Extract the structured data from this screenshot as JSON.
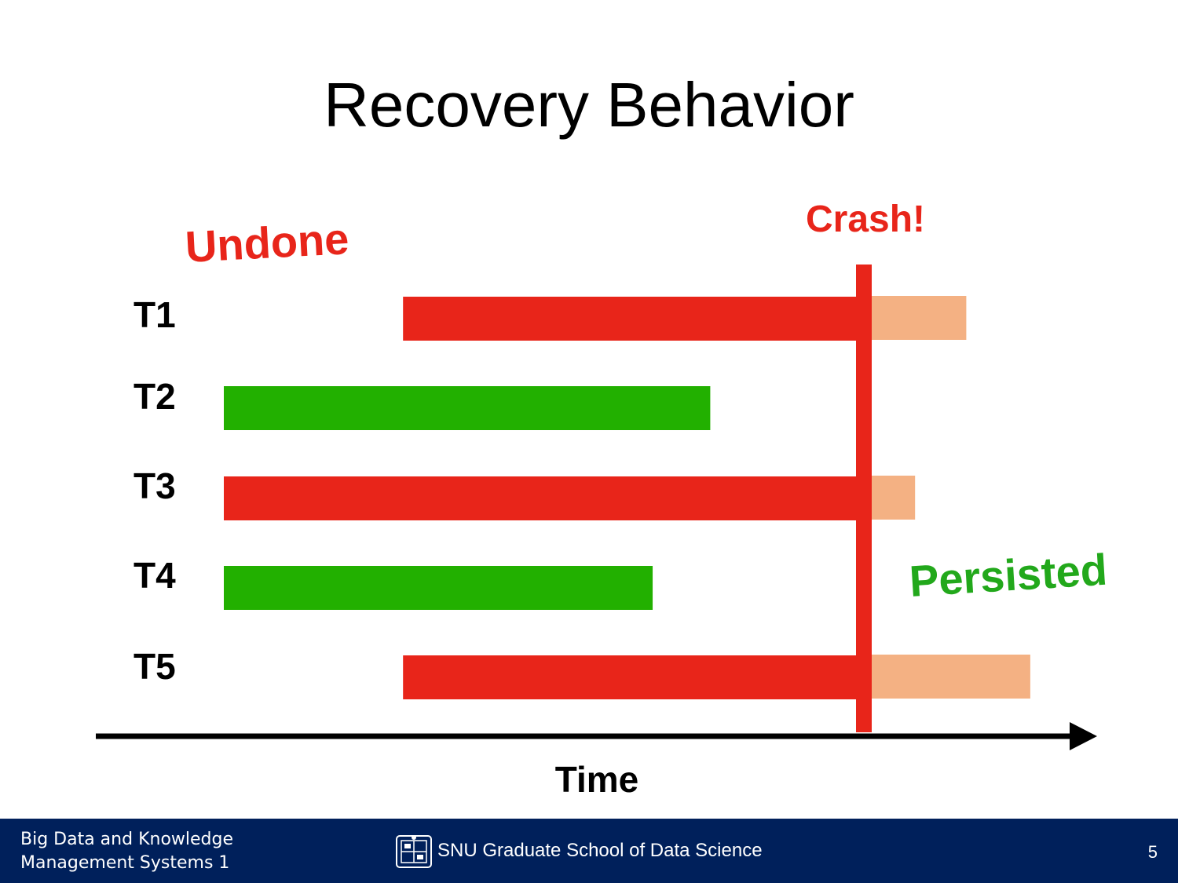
{
  "slide": {
    "title": "Recovery Behavior",
    "page_number": "5"
  },
  "annotations": {
    "undone": "Undone",
    "crash": "Crash!",
    "persisted": "Persisted",
    "time": "Time"
  },
  "colors": {
    "undone_red": "#e8251a",
    "persisted_green": "#22b000",
    "undo_tail": "#f4b183",
    "footer_navy": "#00205b"
  },
  "transactions": [
    {
      "label": "T1",
      "status": "undone",
      "start": 0.28,
      "end": 1.0,
      "tail_end": 1.16
    },
    {
      "label": "T2",
      "status": "persisted",
      "start": 0.0,
      "end": 0.76
    },
    {
      "label": "T3",
      "status": "undone",
      "start": 0.0,
      "end": 1.0,
      "tail_end": 1.08
    },
    {
      "label": "T4",
      "status": "persisted",
      "start": 0.0,
      "end": 0.67
    },
    {
      "label": "T5",
      "status": "undone",
      "start": 0.28,
      "end": 1.0,
      "tail_end": 1.26
    }
  ],
  "footer": {
    "course_line1": "Big Data and Knowledge",
    "course_line2": "Management Systems 1",
    "school": "SNU Graduate School of Data Science"
  }
}
